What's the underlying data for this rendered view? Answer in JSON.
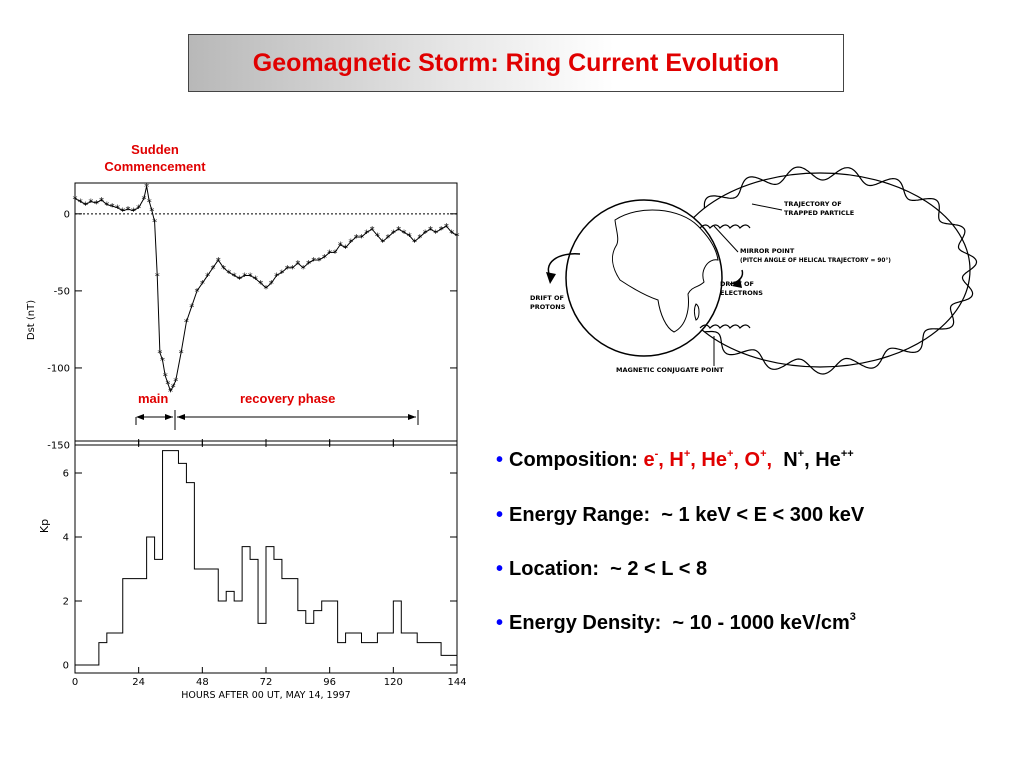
{
  "title": "Geomagnetic Storm: Ring Current Evolution",
  "sudden_commencement": [
    "Sudden",
    "Commencement"
  ],
  "phases": {
    "main": "main",
    "recovery": "recovery phase"
  },
  "dst_panel": {
    "ylabel": "Dst (nT)",
    "yticks": [
      "0",
      "-50",
      "-100",
      "-150"
    ]
  },
  "kp_panel": {
    "ylabel": "Kp",
    "yticks": [
      "0",
      "2",
      "4",
      "6"
    ],
    "xticks": [
      "0",
      "24",
      "48",
      "72",
      "96",
      "120",
      "144"
    ],
    "xlabel": "HOURS AFTER 00 UT, MAY 14, 1997"
  },
  "chart_data": [
    {
      "type": "line",
      "title": "",
      "xlabel": "",
      "ylabel": "Dst (nT)",
      "xlim": [
        0,
        144
      ],
      "ylim": [
        -150,
        20
      ],
      "x": [
        0,
        2,
        4,
        6,
        8,
        10,
        12,
        14,
        16,
        18,
        20,
        22,
        24,
        26,
        27,
        28,
        29,
        30,
        31,
        32,
        33,
        34,
        35,
        36,
        37,
        38,
        40,
        42,
        44,
        46,
        48,
        50,
        52,
        54,
        56,
        58,
        60,
        62,
        64,
        66,
        68,
        70,
        72,
        74,
        76,
        78,
        80,
        82,
        84,
        86,
        88,
        90,
        92,
        94,
        96,
        98,
        100,
        102,
        104,
        106,
        108,
        110,
        112,
        114,
        116,
        118,
        120,
        122,
        124,
        126,
        128,
        130,
        132,
        134,
        136,
        138,
        140,
        142,
        144
      ],
      "y": [
        10,
        8,
        6,
        8,
        7,
        9,
        6,
        5,
        4,
        2,
        3,
        2,
        4,
        10,
        18,
        8,
        2,
        -5,
        -40,
        -90,
        -95,
        -105,
        -110,
        -115,
        -112,
        -108,
        -90,
        -70,
        -60,
        -50,
        -45,
        -40,
        -35,
        -30,
        -35,
        -38,
        -40,
        -42,
        -40,
        -40,
        -42,
        -45,
        -48,
        -45,
        -40,
        -38,
        -35,
        -35,
        -32,
        -35,
        -32,
        -30,
        -30,
        -28,
        -25,
        -25,
        -20,
        -22,
        -18,
        -15,
        -15,
        -12,
        -10,
        -14,
        -18,
        -15,
        -12,
        -10,
        -12,
        -14,
        -18,
        -15,
        -12,
        -10,
        -12,
        -10,
        -8,
        -12,
        -14
      ],
      "series": [
        {
          "values": "y"
        }
      ],
      "grid": false,
      "reference_line": 0
    },
    {
      "type": "line",
      "title": "",
      "xlabel": "HOURS AFTER 00 UT, MAY 14, 1997",
      "ylabel": "Kp",
      "xlim": [
        0,
        144
      ],
      "ylim": [
        0,
        7
      ],
      "step": true,
      "x": [
        0,
        9,
        12,
        15,
        18,
        21,
        24,
        27,
        30,
        33,
        36,
        39,
        42,
        45,
        48,
        51,
        54,
        57,
        60,
        63,
        66,
        69,
        72,
        75,
        78,
        81,
        84,
        87,
        90,
        93,
        96,
        99,
        102,
        105,
        108,
        111,
        114,
        117,
        120,
        123,
        126,
        129,
        132,
        135,
        138,
        141,
        144
      ],
      "y": [
        0,
        0.7,
        1,
        1,
        2.7,
        2.7,
        2.7,
        4,
        3.3,
        6.7,
        6.7,
        6.3,
        5.7,
        3,
        3,
        3,
        2,
        2.3,
        2,
        3.7,
        3.3,
        1.3,
        3.7,
        3.3,
        2.7,
        2.7,
        1.7,
        1.3,
        1.7,
        2,
        2,
        0.7,
        1,
        1,
        0.7,
        0.7,
        1,
        1,
        2,
        1,
        1,
        0.7,
        0.7,
        0.7,
        0.3,
        0.3,
        0.3
      ]
    }
  ],
  "diagram": {
    "labels": {
      "trajectory": [
        "TRAJECTORY OF",
        "TRAPPED PARTICLE"
      ],
      "mirror": [
        "MIRROR POINT",
        "(PITCH ANGLE OF HELICAL TRAJECTORY = 90°)"
      ],
      "electrons": [
        "DRIFT OF",
        "ELECTRONS"
      ],
      "protons": [
        "DRIFT OF",
        "PROTONS"
      ],
      "conjugate": "MAGNETIC CONJUGATE POINT"
    }
  },
  "bullets": {
    "composition": {
      "label": "Composition:",
      "ions": [
        "e",
        "-",
        "H",
        "+",
        "He",
        "+",
        "O",
        "+",
        "N",
        "+",
        "He",
        "++"
      ]
    },
    "energy_range": {
      "label": "Energy Range:",
      "value": "~ 1 keV < E < 300 keV"
    },
    "location": {
      "label": "Location:",
      "value": "~ 2 < L < 8"
    },
    "energy_density": {
      "label": "Energy Density:",
      "value": "~ 10 - 1000 keV/cm",
      "exp": "3"
    }
  },
  "colors": {
    "accent": "#e00000",
    "bullet": "#0000ff"
  }
}
